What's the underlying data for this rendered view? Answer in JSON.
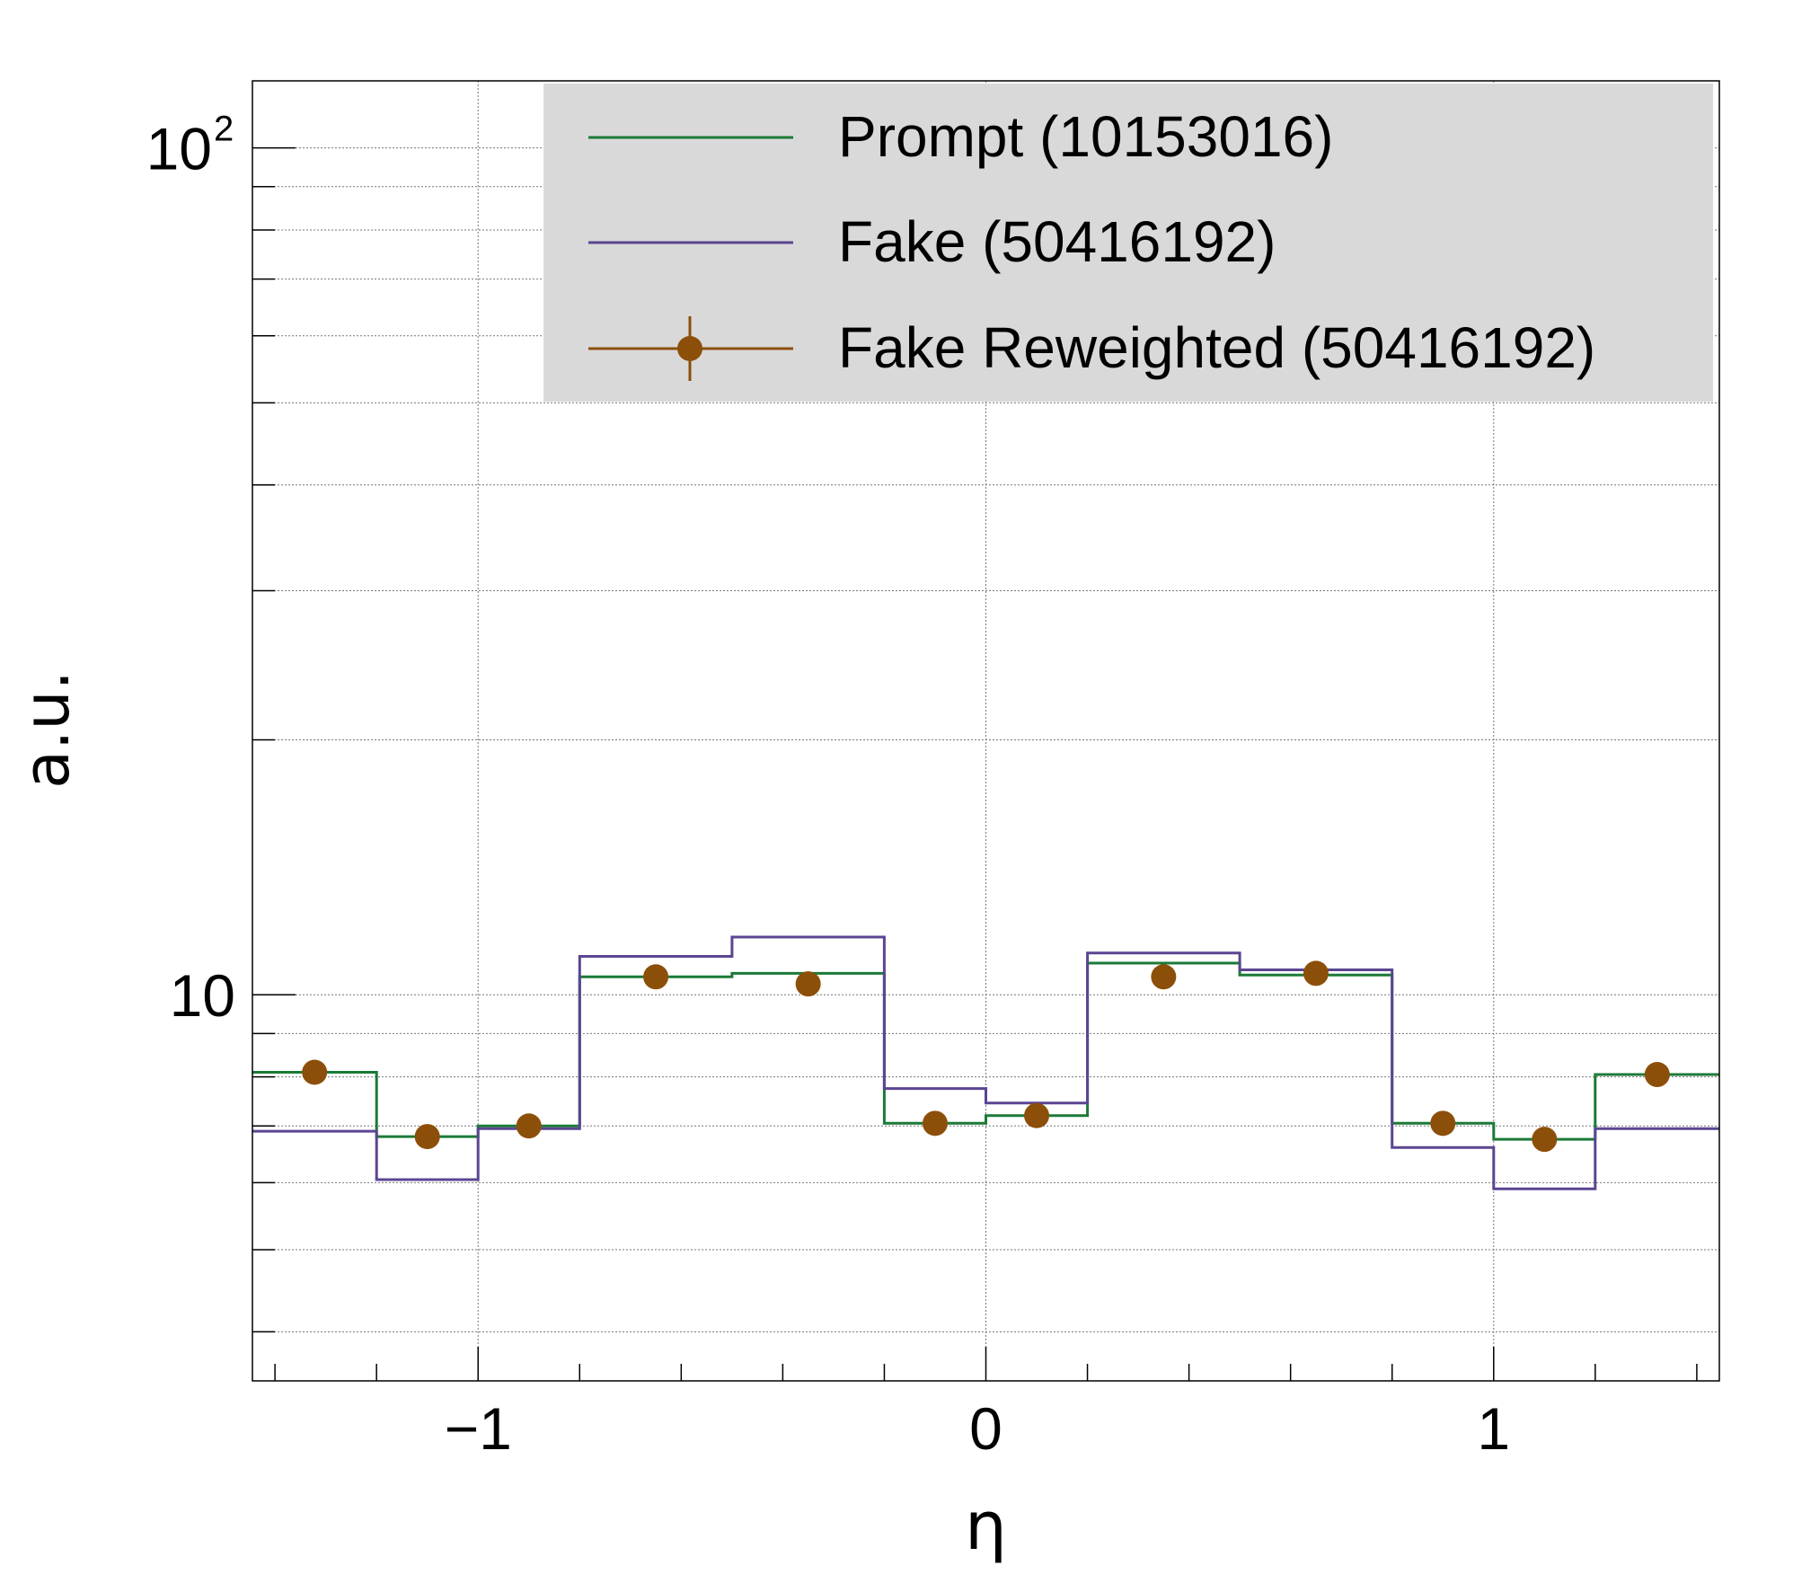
{
  "chart_data": {
    "type": "line",
    "title": "",
    "xlabel": "η",
    "ylabel": "a.u.",
    "xlim": [
      -1.4444,
      1.4444
    ],
    "ylim": [
      3.5,
      120
    ],
    "y_scale": "log",
    "grid": true,
    "x_ticks": [
      {
        "value": -1,
        "label": "−1"
      },
      {
        "value": 0,
        "label": "0"
      },
      {
        "value": 1,
        "label": "1"
      }
    ],
    "y_ticks": [
      {
        "value": 10,
        "label": "10",
        "sup": ""
      },
      {
        "value": 100,
        "label": "10",
        "sup": "2"
      }
    ],
    "bin_edges": [
      -1.4444,
      -1.2,
      -1.0,
      -0.8,
      -0.5,
      -0.2,
      0.0,
      0.2,
      0.5,
      0.8,
      1.0,
      1.2,
      1.4444
    ],
    "legend": {
      "position": "top-right",
      "entries": [
        {
          "label": "Prompt (10153016)",
          "series": "prompt"
        },
        {
          "label": "Fake (50416192)",
          "series": "fake"
        },
        {
          "label": "Fake Reweighted (50416192)",
          "series": "fake_reweighted"
        }
      ]
    },
    "series": [
      {
        "key": "prompt",
        "style": "step",
        "color": "#1b7a37",
        "values": [
          8.1,
          6.8,
          7.0,
          10.5,
          10.6,
          7.05,
          7.2,
          10.9,
          10.55,
          7.05,
          6.75,
          8.05
        ]
      },
      {
        "key": "fake",
        "style": "step",
        "color": "#5c4592",
        "values": [
          6.9,
          6.05,
          6.95,
          11.1,
          11.7,
          7.75,
          7.45,
          11.2,
          10.7,
          6.6,
          5.9,
          6.95
        ]
      },
      {
        "key": "fake_reweighted",
        "style": "markers",
        "color": "#8c4f0a",
        "x": [
          -1.322,
          -1.1,
          -0.9,
          -0.65,
          -0.35,
          -0.1,
          0.1,
          0.35,
          0.65,
          0.9,
          1.1,
          1.322
        ],
        "values": [
          8.1,
          6.8,
          7.0,
          10.5,
          10.3,
          7.05,
          7.2,
          10.5,
          10.6,
          7.05,
          6.75,
          8.05
        ]
      }
    ]
  }
}
